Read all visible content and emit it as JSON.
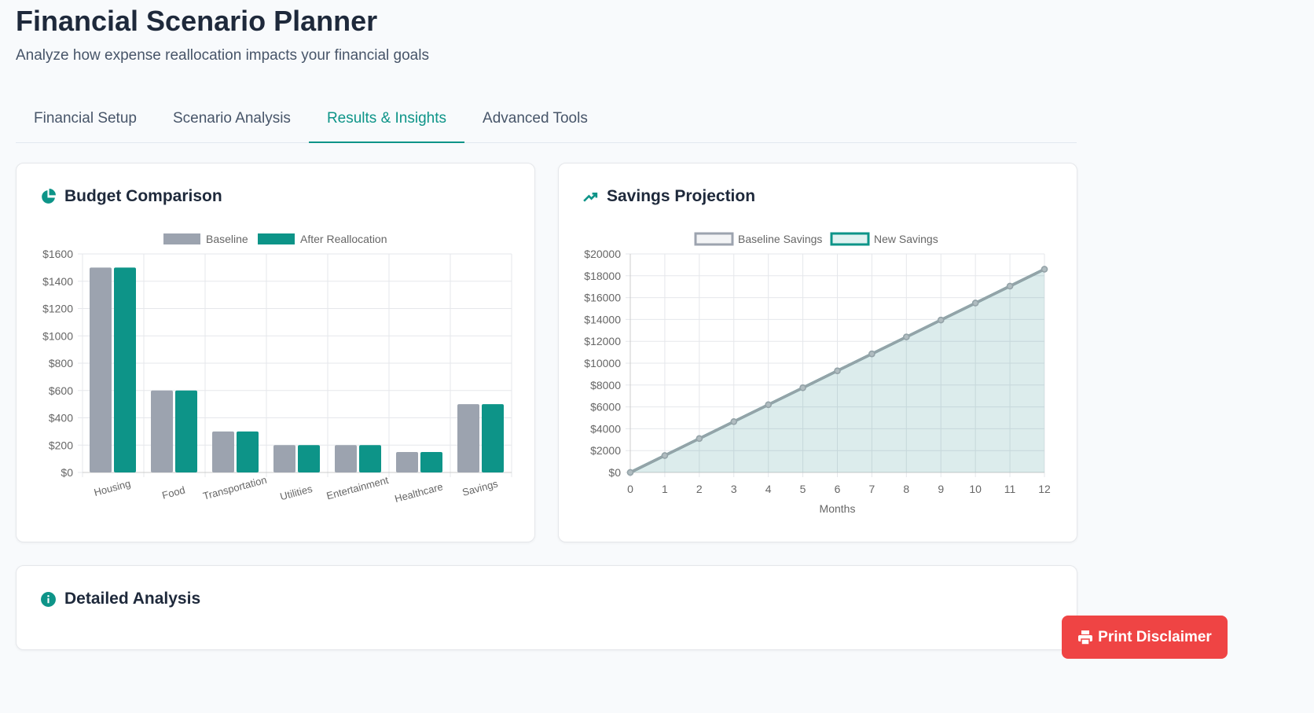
{
  "header": {
    "title": "Financial Scenario Planner",
    "subtitle": "Analyze how expense reallocation impacts your financial goals"
  },
  "tabs": [
    {
      "label": "Financial Setup"
    },
    {
      "label": "Scenario Analysis"
    },
    {
      "label": "Results & Insights",
      "active": true
    },
    {
      "label": "Advanced Tools"
    }
  ],
  "cards": {
    "budget": "Budget Comparison",
    "savings": "Savings Projection",
    "detailed": "Detailed Analysis"
  },
  "print_label": "Print Disclaimer",
  "colors": {
    "accent": "#0d9488",
    "gray": "#9ca3af",
    "red": "#ef4444"
  },
  "chart_data": [
    {
      "type": "bar",
      "title": "Budget Comparison",
      "categories": [
        "Housing",
        "Food",
        "Transportation",
        "Utilities",
        "Entertainment",
        "Healthcare",
        "Savings"
      ],
      "series": [
        {
          "name": "Baseline",
          "values": [
            1500,
            600,
            300,
            200,
            200,
            150,
            500
          ]
        },
        {
          "name": "After Reallocation",
          "values": [
            1500,
            600,
            300,
            200,
            200,
            150,
            500
          ]
        }
      ],
      "ylim": [
        0,
        1600
      ],
      "yticks": [
        0,
        200,
        400,
        600,
        800,
        1000,
        1200,
        1400,
        1600
      ],
      "legend": "top",
      "grid": true
    },
    {
      "type": "line",
      "title": "Savings Projection",
      "x": [
        0,
        1,
        2,
        3,
        4,
        5,
        6,
        7,
        8,
        9,
        10,
        11,
        12
      ],
      "xlabel": "Months",
      "series": [
        {
          "name": "Baseline Savings",
          "values": [
            0,
            1550,
            3100,
            4650,
            6200,
            7750,
            9300,
            10850,
            12400,
            13950,
            15500,
            17050,
            18600
          ]
        },
        {
          "name": "New Savings",
          "values": [
            0,
            1550,
            3100,
            4650,
            6200,
            7750,
            9300,
            10850,
            12400,
            13950,
            15500,
            17050,
            18600
          ]
        }
      ],
      "ylim": [
        0,
        20000
      ],
      "yticks": [
        0,
        2000,
        4000,
        6000,
        8000,
        10000,
        12000,
        14000,
        16000,
        18000,
        20000
      ],
      "legend": "top",
      "grid": true
    }
  ]
}
